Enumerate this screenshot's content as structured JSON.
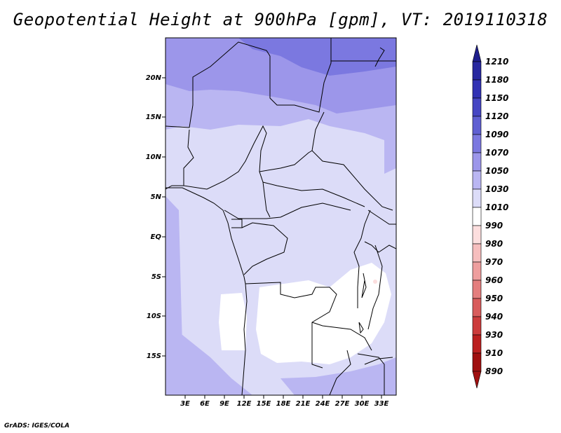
{
  "title": "Geopotential Height at 900hPa [gpm], VT: 2019110318",
  "credit": "GrADS: IGES/COLA",
  "map": {
    "lat_labels": [
      "20N",
      "15N",
      "10N",
      "5N",
      "EQ",
      "5S",
      "10S",
      "15S"
    ],
    "lon_labels": [
      "3E",
      "6E",
      "9E",
      "12E",
      "15E",
      "18E",
      "21E",
      "24E",
      "27E",
      "30E",
      "33E"
    ]
  },
  "colorbar": {
    "levels": [
      "1210",
      "1180",
      "1150",
      "1120",
      "1090",
      "1070",
      "1050",
      "1030",
      "1010",
      "990",
      "980",
      "970",
      "960",
      "950",
      "940",
      "930",
      "910",
      "890"
    ],
    "colors": [
      "#1e1e8c",
      "#2828a0",
      "#3232b4",
      "#4646c3",
      "#5f5fd2",
      "#7b78e0",
      "#9c96ea",
      "#bab6f2",
      "#dcdcf8",
      "#ffffff",
      "#fcdede",
      "#f6bebe",
      "#ee9e9e",
      "#e47e7e",
      "#d85c5c",
      "#cc3c3c",
      "#bb2020",
      "#a01010"
    ]
  }
}
